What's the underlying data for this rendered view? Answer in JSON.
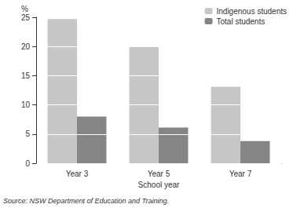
{
  "chart_data": {
    "type": "bar",
    "ylabel": "%",
    "xlabel": "School year",
    "source": "Source: NSW Department of Education and Training.",
    "categories": [
      "Year 3",
      "Year 5",
      "Year 7"
    ],
    "series": [
      {
        "name": "Indigenous students",
        "color": "#c6c6c6",
        "values": [
          24.7,
          19.9,
          13.1
        ]
      },
      {
        "name": "Total students",
        "color": "#858585",
        "values": [
          8.0,
          6.1,
          3.8
        ]
      }
    ],
    "ylim": [
      0,
      25
    ],
    "yticks": [
      0,
      5,
      10,
      15,
      20,
      25
    ],
    "grid": true,
    "legend": "top-right"
  }
}
